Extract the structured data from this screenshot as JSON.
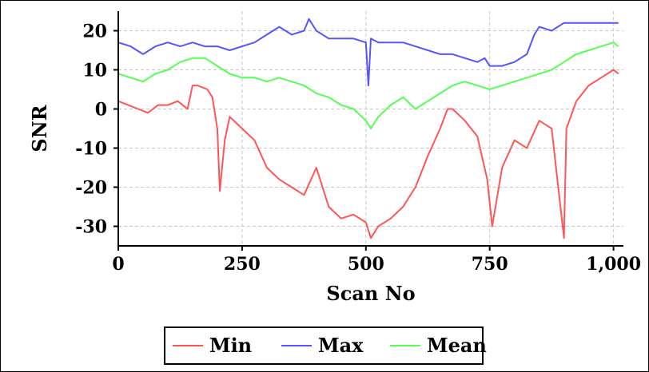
{
  "chart_data": {
    "type": "line",
    "title": "",
    "xlabel": "Scan No",
    "ylabel": "SNR",
    "xlim": [
      0,
      1020
    ],
    "ylim": [
      -35,
      25
    ],
    "x_ticks": [
      0,
      250,
      500,
      750,
      1000
    ],
    "x_tick_labels": [
      "0",
      "250",
      "500",
      "750",
      "1,000"
    ],
    "y_ticks": [
      20,
      10,
      0,
      -10,
      -20,
      -30
    ],
    "y_tick_labels": [
      "20",
      "10",
      "0",
      "-10",
      "-20",
      "-30"
    ],
    "grid": true,
    "legend_position": "bottom-center",
    "series": [
      {
        "name": "Min",
        "color": "#ff5555",
        "x": [
          0,
          20,
          40,
          60,
          80,
          100,
          120,
          140,
          150,
          160,
          180,
          190,
          200,
          205,
          215,
          225,
          250,
          275,
          300,
          325,
          350,
          375,
          400,
          425,
          450,
          475,
          500,
          510,
          525,
          550,
          575,
          600,
          625,
          650,
          665,
          675,
          700,
          725,
          745,
          755,
          775,
          800,
          825,
          850,
          875,
          900,
          905,
          925,
          950,
          975,
          1000,
          1010
        ],
        "values": [
          2,
          1,
          0,
          -1,
          1,
          1,
          2,
          0,
          6,
          6,
          5,
          3,
          -5,
          -21,
          -8,
          -2,
          -5,
          -8,
          -15,
          -18,
          -20,
          -22,
          -15,
          -25,
          -28,
          -27,
          -29,
          -33,
          -30,
          -28,
          -25,
          -20,
          -12,
          -5,
          0,
          0,
          -3,
          -7,
          -18,
          -30,
          -15,
          -8,
          -10,
          -3,
          -5,
          -33,
          -5,
          2,
          6,
          8,
          10,
          9
        ]
      },
      {
        "name": "Max",
        "color": "#5555ff",
        "x": [
          0,
          25,
          50,
          75,
          100,
          125,
          150,
          175,
          200,
          225,
          250,
          275,
          300,
          325,
          350,
          375,
          385,
          400,
          425,
          450,
          475,
          500,
          505,
          510,
          525,
          550,
          575,
          600,
          625,
          650,
          675,
          700,
          725,
          740,
          750,
          775,
          800,
          825,
          840,
          850,
          875,
          900,
          925,
          950,
          975,
          1000,
          1010
        ],
        "values": [
          17,
          16,
          14,
          16,
          17,
          16,
          17,
          16,
          16,
          15,
          16,
          17,
          19,
          21,
          19,
          20,
          23,
          20,
          18,
          18,
          18,
          17,
          6,
          18,
          17,
          17,
          17,
          16,
          15,
          14,
          14,
          13,
          12,
          13,
          11,
          11,
          12,
          14,
          19,
          21,
          20,
          22,
          22,
          22,
          22,
          22,
          22
        ]
      },
      {
        "name": "Mean",
        "color": "#55ff55",
        "x": [
          0,
          25,
          50,
          75,
          100,
          125,
          150,
          175,
          200,
          225,
          250,
          275,
          300,
          325,
          350,
          375,
          400,
          425,
          450,
          475,
          500,
          510,
          525,
          550,
          575,
          600,
          625,
          650,
          675,
          700,
          725,
          750,
          775,
          800,
          825,
          850,
          875,
          900,
          925,
          950,
          975,
          1000,
          1010
        ],
        "values": [
          9,
          8,
          7,
          9,
          10,
          12,
          13,
          13,
          11,
          9,
          8,
          8,
          7,
          8,
          7,
          6,
          4,
          3,
          1,
          0,
          -3,
          -5,
          -2,
          1,
          3,
          0,
          2,
          4,
          6,
          7,
          6,
          5,
          6,
          7,
          8,
          9,
          10,
          12,
          14,
          15,
          16,
          17,
          16
        ]
      }
    ]
  }
}
